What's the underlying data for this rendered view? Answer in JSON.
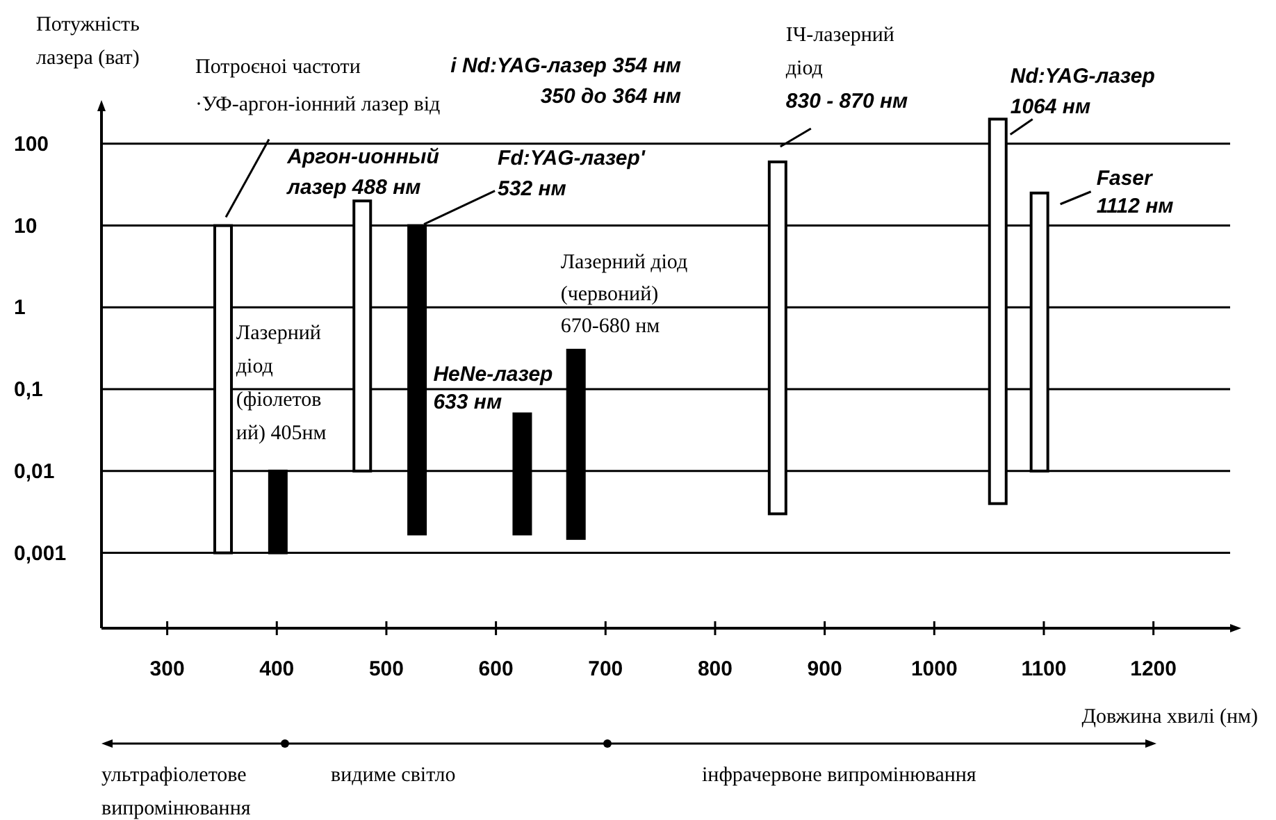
{
  "chart_data": {
    "type": "bar",
    "ylabel": "Потужність\nлазера (ват)",
    "xlabel": "Довжина хвилі (нм)",
    "x": [
      351,
      401,
      478,
      528,
      624,
      673,
      857,
      1058,
      1096
    ],
    "base": [
      0.001,
      0.001,
      0.01,
      0.0017,
      0.0017,
      0.0015,
      0.003,
      0.004,
      0.01
    ],
    "values": [
      9.999,
      0.009,
      19.99,
      9.9983,
      0.0483,
      0.2985,
      59.997,
      199.996,
      24.99
    ],
    "colors": [
      "#ffffff",
      "#000000",
      "#ffffff",
      "#000000",
      "#000000",
      "#000000",
      "#ffffff",
      "#ffffff",
      "#ffffff"
    ],
    "log": "y",
    "grid": "y",
    "xlim": [
      240,
      1270
    ],
    "xticks": [
      300,
      400,
      500,
      600,
      700,
      800,
      900,
      1000,
      1100,
      1200
    ],
    "ylim": [
      0.00012,
      250
    ],
    "yticks": [
      100,
      10,
      1,
      {
        "value": 0.1,
        "label": "0,1"
      },
      {
        "value": 0.01,
        "label": "0,01"
      },
      {
        "value": 0.001,
        "label": "0,001"
      }
    ],
    "annotations": [
      {
        "text": "Потроєноі частоти\n·УФ-аргон-іонний лазер від",
        "x": 351,
        "y": 10
      },
      "і Nd:YAG-лазер 354 нм\n350 до 364 нм",
      {
        "text": "Аргон-ионный\nлазер 488 нм",
        "x": 478,
        "y": 20
      },
      {
        "text": "Fd:YAG-лазер'\n532 нм",
        "x": 528,
        "y": 10
      },
      {
        "text": "Лазерний\nдіод\n(фіолетов\nий) 405нм",
        "x": 401,
        "y": 0.01
      },
      {
        "text": "HeNe-лазер\n633 нм",
        "x": 624,
        "y": 0.05
      },
      {
        "text": "Лазерний діод\n(червоний)\n670-680 нм",
        "x": 673,
        "y": 0.3
      },
      {
        "text": "ІЧ-лазерний\nдіод\n830 - 870 нм",
        "x": 857,
        "y": 60
      },
      {
        "text": "Nd:YAG-лазер\n1064 нм",
        "x": 1058,
        "y": 200
      },
      {
        "text": "Faser\n1112 нм",
        "x": 1096,
        "y": 25
      },
      "ультрафіолетове\nвипромінювання",
      "видиме світло",
      "інфрачервоне випромінювання"
    ]
  }
}
